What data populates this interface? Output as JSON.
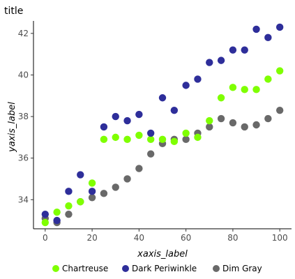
{
  "chart_data": {
    "type": "scatter",
    "title": "title",
    "xlabel": "xaxis_label",
    "ylabel": "yaxis_label",
    "xlim": [
      -5,
      105
    ],
    "ylim": [
      32.6,
      42.6
    ],
    "x_ticks": [
      0,
      20,
      40,
      60,
      80,
      100
    ],
    "y_ticks": [
      34,
      36,
      38,
      40,
      42
    ],
    "legend_position": "bottom",
    "series": [
      {
        "name": "Chartreuse",
        "color": "#7fff00",
        "points": [
          [
            0,
            32.9
          ],
          [
            5,
            33.4
          ],
          [
            10,
            33.7
          ],
          [
            15,
            33.9
          ],
          [
            20,
            34.8
          ],
          [
            25,
            36.9
          ],
          [
            30,
            37.0
          ],
          [
            35,
            36.9
          ],
          [
            40,
            37.1
          ],
          [
            45,
            36.9
          ],
          [
            50,
            36.9
          ],
          [
            55,
            36.8
          ],
          [
            60,
            37.2
          ],
          [
            65,
            37.0
          ],
          [
            70,
            37.8
          ],
          [
            75,
            38.9
          ],
          [
            80,
            39.4
          ],
          [
            85,
            39.3
          ],
          [
            90,
            39.3
          ],
          [
            95,
            39.8
          ],
          [
            100,
            40.2
          ]
        ]
      },
      {
        "name": "Dark Periwinkle",
        "color": "#2e2e9a",
        "points": [
          [
            0,
            33.3
          ],
          [
            5,
            33.0
          ],
          [
            10,
            34.4
          ],
          [
            15,
            35.2
          ],
          [
            20,
            34.4
          ],
          [
            25,
            37.5
          ],
          [
            30,
            38.0
          ],
          [
            35,
            37.8
          ],
          [
            40,
            38.1
          ],
          [
            45,
            37.2
          ],
          [
            50,
            38.9
          ],
          [
            55,
            38.3
          ],
          [
            60,
            39.5
          ],
          [
            65,
            39.8
          ],
          [
            70,
            40.6
          ],
          [
            75,
            40.7
          ],
          [
            80,
            41.2
          ],
          [
            85,
            41.2
          ],
          [
            90,
            42.2
          ],
          [
            95,
            41.8
          ],
          [
            100,
            42.3
          ]
        ]
      },
      {
        "name": "Dim Gray",
        "color": "#696969",
        "points": [
          [
            0,
            33.1
          ],
          [
            5,
            32.9
          ],
          [
            10,
            33.3
          ],
          [
            15,
            33.9
          ],
          [
            20,
            34.1
          ],
          [
            25,
            34.3
          ],
          [
            30,
            34.6
          ],
          [
            35,
            35.0
          ],
          [
            40,
            35.5
          ],
          [
            45,
            36.2
          ],
          [
            50,
            36.7
          ],
          [
            55,
            36.9
          ],
          [
            60,
            36.9
          ],
          [
            65,
            37.2
          ],
          [
            70,
            37.5
          ],
          [
            75,
            37.9
          ],
          [
            80,
            37.7
          ],
          [
            85,
            37.5
          ],
          [
            90,
            37.6
          ],
          [
            95,
            37.9
          ],
          [
            100,
            38.3
          ]
        ]
      }
    ]
  }
}
